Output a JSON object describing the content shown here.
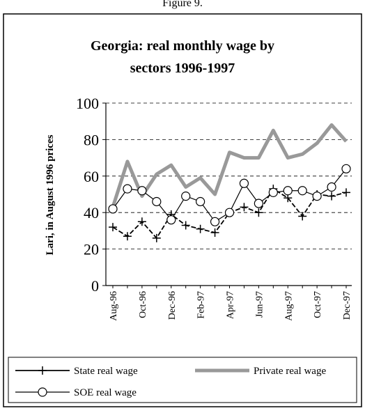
{
  "chart_data": {
    "type": "line",
    "caption": "Figure 9.",
    "title": [
      "Georgia: real monthly wage by",
      "sectors 1996-1997"
    ],
    "y_label": "Lari, in August 1996 prices",
    "categories": [
      "Aug-96",
      null,
      "Oct-96",
      null,
      "Dec-96",
      null,
      "Feb-97",
      null,
      "Apr-97",
      null,
      "Jun-97",
      null,
      "Aug-97",
      null,
      "Oct-97",
      null,
      "Dec-97"
    ],
    "series": [
      {
        "name": "State real wage",
        "color": "#000000",
        "marker": "plus",
        "values": [
          32,
          27,
          35,
          26,
          39,
          33,
          31,
          29,
          40,
          43,
          40,
          53,
          48,
          38,
          50,
          49,
          51
        ]
      },
      {
        "name": "Private real wage",
        "color": "#999999",
        "marker": "none",
        "values": [
          43,
          68,
          49,
          61,
          66,
          54,
          59,
          50,
          73,
          70,
          70,
          85,
          70,
          72,
          78,
          88,
          79
        ]
      },
      {
        "name": "SOE real wage",
        "color": "#000000",
        "marker": "circle",
        "values": [
          42,
          53,
          52,
          46,
          36,
          49,
          46,
          35,
          40,
          56,
          45,
          51,
          52,
          52,
          49,
          54,
          64
        ]
      }
    ],
    "ylim": [
      0,
      100
    ],
    "yticks": [
      0,
      20,
      40,
      60,
      80,
      100
    ],
    "grid": true
  }
}
